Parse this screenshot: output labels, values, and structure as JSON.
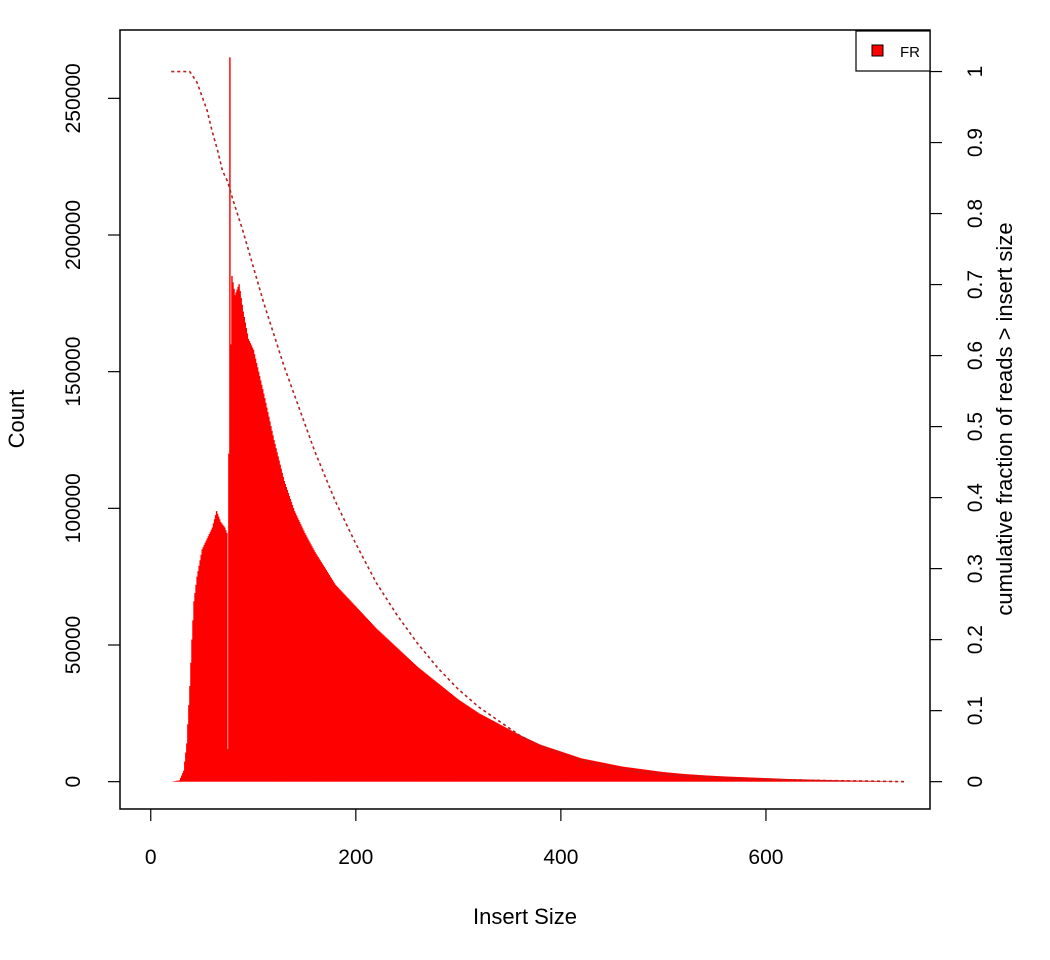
{
  "chart_data": {
    "type": "bar",
    "title": "",
    "xlabel": "Insert Size",
    "ylabel": "Count",
    "y2label": "cumulative fraction of reads > insert size",
    "xlim": [
      -30,
      760
    ],
    "ylim": [
      -10000,
      275000
    ],
    "y2lim": [
      -0.0385,
      1.0585
    ],
    "x_ticks": [
      0,
      200,
      400,
      600
    ],
    "y_ticks": [
      0,
      50000,
      100000,
      150000,
      200000,
      250000
    ],
    "y2_ticks": [
      0,
      0.1,
      0.2,
      0.3,
      0.4,
      0.5,
      0.6,
      0.7,
      0.8,
      0.9,
      1
    ],
    "y2_tick_labels": [
      "0",
      "0.1",
      "0.2",
      "0.3",
      "0.4",
      "0.5",
      "0.6",
      "0.7",
      "0.8",
      "0.9",
      "1"
    ],
    "bar_color": "#ff0000",
    "cumulative_line_color": "#b22222",
    "grid": false,
    "legend": {
      "position": "top-right",
      "entries": [
        {
          "label": "FR",
          "color": "#ff0000"
        }
      ]
    },
    "histogram_points": [
      [
        20,
        0
      ],
      [
        28,
        500
      ],
      [
        32,
        4000
      ],
      [
        35,
        14000
      ],
      [
        38,
        35000
      ],
      [
        40,
        52000
      ],
      [
        42,
        66000
      ],
      [
        45,
        75000
      ],
      [
        50,
        85000
      ],
      [
        55,
        89000
      ],
      [
        60,
        93000
      ],
      [
        64,
        99000
      ],
      [
        68,
        95000
      ],
      [
        72,
        93000
      ],
      [
        74,
        91000
      ],
      [
        75,
        12000
      ],
      [
        76,
        120000
      ],
      [
        77,
        265000
      ],
      [
        78,
        160000
      ],
      [
        79,
        185000
      ],
      [
        82,
        178000
      ],
      [
        86,
        182000
      ],
      [
        90,
        172000
      ],
      [
        95,
        162000
      ],
      [
        100,
        158000
      ],
      [
        110,
        142000
      ],
      [
        120,
        125000
      ],
      [
        130,
        110000
      ],
      [
        140,
        99000
      ],
      [
        150,
        91000
      ],
      [
        160,
        84000
      ],
      [
        170,
        78000
      ],
      [
        180,
        72000
      ],
      [
        190,
        68000
      ],
      [
        200,
        64000
      ],
      [
        220,
        56000
      ],
      [
        240,
        49000
      ],
      [
        260,
        42000
      ],
      [
        280,
        36000
      ],
      [
        300,
        30000
      ],
      [
        320,
        25000
      ],
      [
        340,
        21000
      ],
      [
        360,
        17000
      ],
      [
        380,
        13500
      ],
      [
        400,
        11000
      ],
      [
        420,
        8500
      ],
      [
        440,
        7000
      ],
      [
        460,
        5500
      ],
      [
        480,
        4500
      ],
      [
        500,
        3500
      ],
      [
        520,
        2800
      ],
      [
        540,
        2300
      ],
      [
        560,
        1900
      ],
      [
        580,
        1600
      ],
      [
        600,
        1300
      ],
      [
        620,
        1000
      ],
      [
        640,
        800
      ],
      [
        660,
        600
      ],
      [
        680,
        450
      ],
      [
        700,
        300
      ],
      [
        720,
        150
      ],
      [
        735,
        0
      ]
    ],
    "cumulative_points": [
      [
        20,
        1.0
      ],
      [
        30,
        1.0
      ],
      [
        38,
        1.0
      ],
      [
        45,
        0.985
      ],
      [
        50,
        0.965
      ],
      [
        55,
        0.945
      ],
      [
        60,
        0.915
      ],
      [
        65,
        0.89
      ],
      [
        70,
        0.86
      ],
      [
        75,
        0.845
      ],
      [
        80,
        0.82
      ],
      [
        90,
        0.775
      ],
      [
        100,
        0.725
      ],
      [
        110,
        0.675
      ],
      [
        120,
        0.63
      ],
      [
        130,
        0.585
      ],
      [
        140,
        0.545
      ],
      [
        150,
        0.505
      ],
      [
        160,
        0.465
      ],
      [
        170,
        0.43
      ],
      [
        180,
        0.395
      ],
      [
        190,
        0.365
      ],
      [
        200,
        0.335
      ],
      [
        220,
        0.28
      ],
      [
        240,
        0.235
      ],
      [
        260,
        0.195
      ],
      [
        280,
        0.16
      ],
      [
        300,
        0.13
      ],
      [
        320,
        0.105
      ],
      [
        340,
        0.085
      ],
      [
        360,
        0.065
      ],
      [
        380,
        0.05
      ],
      [
        400,
        0.04
      ],
      [
        420,
        0.03
      ],
      [
        440,
        0.022
      ],
      [
        460,
        0.017
      ],
      [
        480,
        0.013
      ],
      [
        500,
        0.01
      ],
      [
        540,
        0.006
      ],
      [
        580,
        0.004
      ],
      [
        620,
        0.0025
      ],
      [
        660,
        0.0015
      ],
      [
        700,
        0.0008
      ],
      [
        735,
        0.0
      ]
    ]
  }
}
